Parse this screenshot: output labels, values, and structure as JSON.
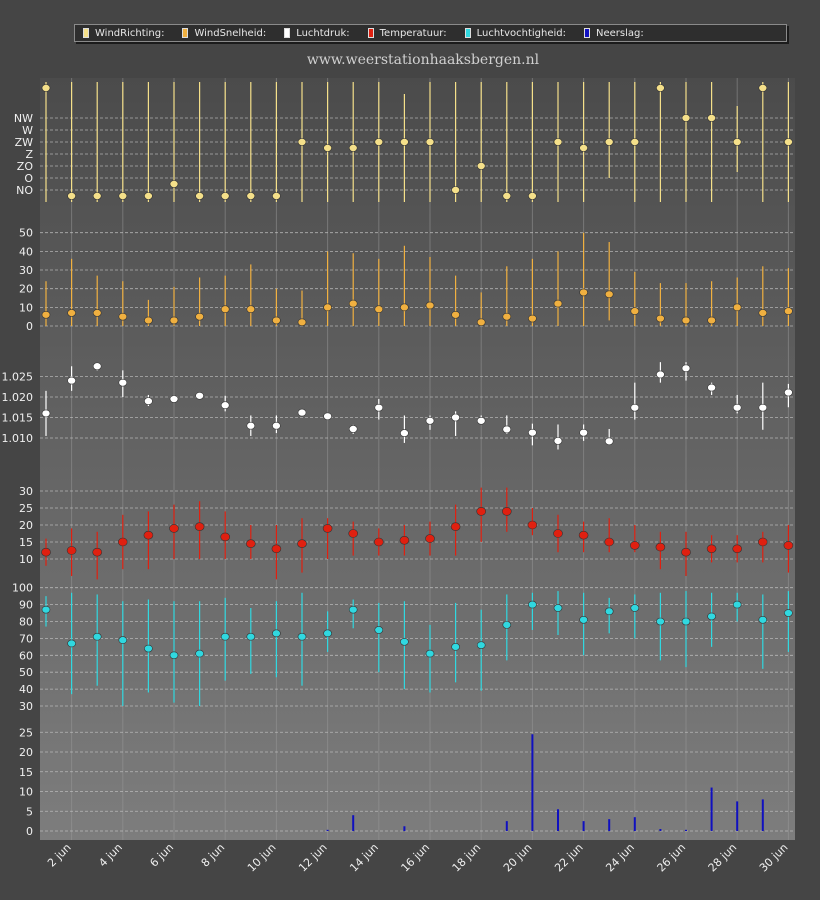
{
  "legend": [
    {
      "label": "WindRichting:",
      "color": "#f5e08a"
    },
    {
      "label": "WindSnelheid:",
      "color": "#f0b040"
    },
    {
      "label": "Luchtdruk:",
      "color": "#ffffff"
    },
    {
      "label": "Temperatuur:",
      "color": "#e02010"
    },
    {
      "label": "Luchtvochtigheid:",
      "color": "#30d8e0"
    },
    {
      "label": "Neerslag:",
      "color": "#1010c0"
    }
  ],
  "site_url": "www.weerstationhaaksbergen.nl",
  "chart_data": [
    {
      "type": "scatter",
      "name": "WindRichting",
      "color": "#f5e08a",
      "y_categories": [
        "NW",
        "W",
        "ZW",
        "Z",
        "ZO",
        "O",
        "NO"
      ],
      "days": [
        1,
        2,
        3,
        4,
        5,
        6,
        7,
        8,
        9,
        10,
        11,
        12,
        13,
        14,
        15,
        16,
        17,
        18,
        19,
        20,
        21,
        22,
        23,
        24,
        25,
        26,
        27,
        28,
        29,
        30
      ],
      "values": [
        8.5,
        -0.5,
        -0.5,
        -0.5,
        -0.5,
        0.5,
        -0.5,
        -0.5,
        -0.5,
        -0.5,
        4,
        3.5,
        3.5,
        4,
        4,
        4,
        0,
        2,
        -0.5,
        -0.5,
        4,
        3.5,
        4,
        4,
        8.5,
        6,
        6,
        4,
        8.5,
        4
      ],
      "low": [
        -1,
        -1,
        -1,
        -1,
        -1,
        -1,
        -1,
        -1,
        -1,
        -1,
        -1,
        -1,
        -1,
        -1,
        -1,
        -1,
        -1,
        -1,
        -1,
        -1,
        -1,
        -1,
        1,
        -1,
        -1,
        -1,
        -1,
        1.5,
        -1,
        -1
      ],
      "high": [
        9,
        9,
        9,
        9,
        9,
        9,
        9,
        9,
        9,
        9,
        9,
        9,
        9,
        9,
        8,
        9,
        9,
        9,
        9,
        9,
        9,
        9,
        9,
        9,
        9,
        9,
        9,
        7,
        9,
        9
      ]
    },
    {
      "type": "scatter",
      "name": "WindSnelheid",
      "color": "#f0b040",
      "y_ticks": [
        0,
        10,
        20,
        30,
        40,
        50
      ],
      "days": [
        1,
        2,
        3,
        4,
        5,
        6,
        7,
        8,
        9,
        10,
        11,
        12,
        13,
        14,
        15,
        16,
        17,
        18,
        19,
        20,
        21,
        22,
        23,
        24,
        25,
        26,
        27,
        28,
        29,
        30
      ],
      "values": [
        6,
        7,
        7,
        5,
        3,
        3,
        5,
        9,
        9,
        3,
        2,
        10,
        12,
        9,
        10,
        11,
        6,
        2,
        5,
        4,
        12,
        18,
        17,
        8,
        4,
        3,
        3,
        10,
        7,
        8
      ],
      "low": [
        0,
        0,
        0,
        0,
        0,
        0,
        0,
        0,
        0,
        0,
        0,
        0,
        0,
        0,
        0,
        0,
        0,
        0,
        0,
        0,
        0,
        0,
        3,
        0,
        0,
        0,
        0,
        0,
        0,
        0
      ],
      "high": [
        24,
        36,
        27,
        24,
        14,
        21,
        26,
        27,
        33,
        20,
        19,
        40,
        39,
        36,
        43,
        37,
        27,
        18,
        32,
        36,
        40,
        50,
        45,
        29,
        23,
        23,
        24,
        26,
        32,
        31
      ]
    },
    {
      "type": "scatter",
      "name": "Luchtdruk",
      "color": "#ffffff",
      "y_ticks": [
        "1.010",
        "1.015",
        "1.020",
        "1.025"
      ],
      "days": [
        1,
        2,
        3,
        4,
        5,
        6,
        7,
        8,
        9,
        10,
        11,
        12,
        13,
        14,
        15,
        16,
        17,
        18,
        19,
        20,
        21,
        22,
        23,
        24,
        25,
        26,
        27,
        28,
        29,
        30
      ],
      "values": [
        1.016,
        1.024,
        1.0275,
        1.0235,
        1.019,
        1.0195,
        1.0203,
        1.018,
        1.013,
        1.013,
        1.0162,
        1.0153,
        1.0122,
        1.0174,
        1.0112,
        1.0142,
        1.015,
        1.0142,
        1.0121,
        1.0113,
        1.0093,
        1.0113,
        1.0092,
        1.0174,
        1.0255,
        1.027,
        1.0223,
        1.0174,
        1.0174,
        1.0211
      ],
      "low": [
        1.0105,
        1.0215,
        1.0265,
        1.02,
        1.0178,
        1.0188,
        1.0195,
        1.0165,
        1.0105,
        1.0112,
        1.0155,
        1.0145,
        1.011,
        1.0145,
        1.0088,
        1.012,
        1.0105,
        1.0137,
        1.011,
        1.0082,
        1.0072,
        1.0093,
        1.0083,
        1.0145,
        1.0235,
        1.024,
        1.0205,
        1.016,
        1.012,
        1.0175
      ],
      "high": [
        1.0215,
        1.0275,
        1.0283,
        1.0265,
        1.0205,
        1.0205,
        1.0205,
        1.0203,
        1.0155,
        1.0155,
        1.0165,
        1.016,
        1.0132,
        1.0195,
        1.0155,
        1.0155,
        1.0165,
        1.0155,
        1.0155,
        1.0135,
        1.0133,
        1.0133,
        1.0122,
        1.0235,
        1.0285,
        1.0285,
        1.0235,
        1.0205,
        1.0235,
        1.0232
      ]
    },
    {
      "type": "scatter",
      "name": "Temperatuur",
      "color": "#e02010",
      "y_ticks": [
        10,
        15,
        20,
        25,
        30
      ],
      "days": [
        1,
        2,
        3,
        4,
        5,
        6,
        7,
        8,
        9,
        10,
        11,
        12,
        13,
        14,
        15,
        16,
        17,
        18,
        19,
        20,
        21,
        22,
        23,
        24,
        25,
        26,
        27,
        28,
        29,
        30
      ],
      "values": [
        12,
        12.5,
        12,
        15,
        17,
        19,
        19.5,
        16.5,
        14.5,
        13,
        14.5,
        19,
        17.5,
        15,
        15.5,
        16,
        19.5,
        24,
        24,
        20,
        17.5,
        17,
        15,
        14,
        13.5,
        12,
        13,
        13,
        15,
        14
      ],
      "low": [
        8,
        5,
        4,
        7,
        7,
        10,
        10,
        10,
        10,
        4,
        6,
        10,
        11,
        11,
        11,
        11,
        11,
        15,
        18,
        17,
        12,
        12,
        12,
        12,
        7,
        5,
        9,
        9,
        9,
        6
      ],
      "high": [
        16,
        19,
        18,
        23,
        24,
        26,
        27,
        24,
        20,
        20,
        22,
        22,
        21,
        19,
        20,
        21,
        26,
        31,
        31,
        25,
        23,
        21,
        22,
        20,
        18,
        18,
        17,
        17,
        18,
        20
      ]
    },
    {
      "type": "scatter",
      "name": "Luchtvochtigheid",
      "color": "#30d8e0",
      "y_ticks": [
        30,
        40,
        50,
        60,
        70,
        80,
        90,
        100
      ],
      "days": [
        1,
        2,
        3,
        4,
        5,
        6,
        7,
        8,
        9,
        10,
        11,
        12,
        13,
        14,
        15,
        16,
        17,
        18,
        19,
        20,
        21,
        22,
        23,
        24,
        25,
        26,
        27,
        28,
        29,
        30
      ],
      "values": [
        87,
        67,
        71,
        69,
        64,
        60,
        61,
        71,
        71,
        73,
        71,
        73,
        87,
        75,
        68,
        61,
        65,
        66,
        78,
        90,
        88,
        81,
        86,
        88,
        80,
        80,
        83,
        90,
        81,
        85
      ],
      "low": [
        77,
        37,
        42,
        30,
        38,
        32,
        30,
        45,
        49,
        47,
        42,
        62,
        76,
        50,
        40,
        38,
        44,
        39,
        57,
        75,
        72,
        60,
        73,
        70,
        57,
        53,
        65,
        80,
        52,
        62
      ],
      "high": [
        95,
        97,
        96,
        92,
        93,
        92,
        92,
        94,
        88,
        92,
        97,
        86,
        93,
        91,
        92,
        78,
        91,
        87,
        96,
        97,
        98,
        97,
        94,
        96,
        97,
        98,
        97,
        97,
        96,
        98
      ]
    },
    {
      "type": "bar",
      "name": "Neerslag",
      "color": "#1010c0",
      "y_ticks": [
        0,
        5,
        10,
        15,
        20,
        25
      ],
      "days": [
        1,
        2,
        3,
        4,
        5,
        6,
        7,
        8,
        9,
        10,
        11,
        12,
        13,
        14,
        15,
        16,
        17,
        18,
        19,
        20,
        21,
        22,
        23,
        24,
        25,
        26,
        27,
        28,
        29,
        30
      ],
      "values": [
        0,
        0,
        0,
        0,
        0,
        0,
        0,
        0,
        0,
        0,
        0,
        0.3,
        4,
        0,
        1.2,
        0,
        0,
        0,
        2.5,
        24.5,
        5.5,
        2.5,
        3,
        3.5,
        0.5,
        0.3,
        11,
        7.5,
        8,
        0
      ]
    }
  ],
  "x_axis": {
    "tick_labels": [
      "2 jun",
      "4 jun",
      "6 jun",
      "8 jun",
      "10 jun",
      "12 jun",
      "14 jun",
      "16 jun",
      "18 jun",
      "20 jun",
      "22 jun",
      "24 jun",
      "26 jun",
      "28 jun",
      "30 jun"
    ],
    "tick_days": [
      2,
      4,
      6,
      8,
      10,
      12,
      14,
      16,
      18,
      20,
      22,
      24,
      26,
      28,
      30
    ]
  }
}
